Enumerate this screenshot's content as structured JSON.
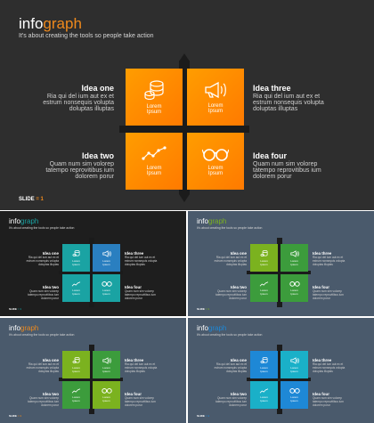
{
  "main": {
    "logo_a": "info",
    "logo_b": "graph",
    "subtitle": "It's about creating the tools so people take action",
    "tile_label_1": "Lorem",
    "tile_label_2": "Ipsum",
    "ideas": [
      {
        "title": "Idea one",
        "l1": "Ria qui del ium aut ex et",
        "l2": "estrum nonsequis volupta",
        "l3": "doluptas illuptas"
      },
      {
        "title": "Idea three",
        "l1": "Ria qui del ium aut ex et",
        "l2": "estrum nonsequis volupta",
        "l3": "doluptas illuptas"
      },
      {
        "title": "Idea two",
        "l1": "Quam num sim volorep",
        "l2": "tatempo reprovitibus ium",
        "l3": "dolorem porur"
      },
      {
        "title": "Idea four",
        "l1": "Quam num sim volorep",
        "l2": "tatempo reprovitibus ium",
        "l3": "dolorem porur"
      }
    ],
    "slide_label": "SLIDE",
    "slide_sep": "=",
    "slide_number": "1"
  },
  "thumb_text": {
    "l1a": "Ria qui del ium aut ex et",
    "l1b": "estrum nonsequis volupta",
    "l1c": "doluptas illuptas",
    "l2a": "Quam num sim volorep",
    "l2b": "tatempo reprovitibus ium",
    "l2c": "dolorem porur"
  },
  "colors": {
    "orange_tile": "#ff8a00",
    "orange_accent": "#f08a1c",
    "teal": "#1aa3a3",
    "sky": "#2a7fc0",
    "lime": "#7bb21f",
    "green": "#3c9c3c",
    "blue": "#1e88d6",
    "cyan": "#1ab0c8"
  },
  "icons": [
    "coins-icon",
    "megaphone-icon",
    "chart-line-icon",
    "glasses-icon"
  ]
}
